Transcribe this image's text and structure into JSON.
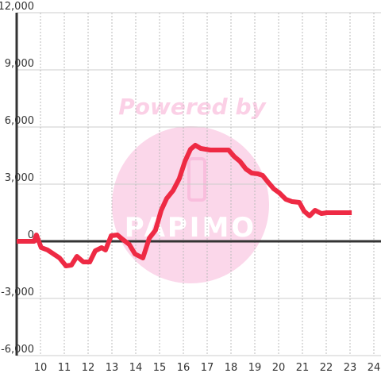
{
  "chart_data": {
    "type": "line",
    "watermark": "Powered by",
    "logo": "PAPIMO",
    "x": [
      9,
      9.73,
      9.83,
      10.03,
      10.3,
      10.8,
      11.07,
      11.3,
      11.53,
      11.8,
      12.07,
      12.3,
      12.57,
      12.73,
      12.97,
      13.23,
      13.47,
      13.73,
      13.97,
      14.3,
      14.57,
      14.83,
      15.07,
      15.3,
      15.57,
      15.83,
      16.07,
      16.3,
      16.5,
      16.73,
      17.13,
      17.9,
      18.13,
      18.37,
      18.63,
      18.87,
      19.13,
      19.33,
      19.57,
      19.8,
      20.03,
      20.3,
      20.57,
      20.87,
      21.07,
      21.3,
      21.53,
      21.8,
      22.03,
      23.07
    ],
    "series": [
      {
        "color": "#ee2a44",
        "values": [
          0,
          0,
          333,
          -333,
          -458,
          -875,
          -1292,
          -1250,
          -792,
          -1083,
          -1083,
          -500,
          -333,
          -458,
          292,
          333,
          83,
          -167,
          -667,
          -875,
          167,
          583,
          1625,
          2250,
          2667,
          3292,
          4208,
          4833,
          5042,
          4875,
          4792,
          4792,
          4458,
          4208,
          3792,
          3583,
          3542,
          3458,
          3083,
          2750,
          2542,
          2208,
          2083,
          2042,
          1583,
          1333,
          1625,
          1458,
          1500,
          1500
        ]
      }
    ],
    "xlim": [
      9,
      24.3
    ],
    "xticks": [
      10,
      11,
      12,
      13,
      14,
      15,
      16,
      17,
      18,
      19,
      20,
      21,
      22,
      23,
      24
    ],
    "ylim": [
      -6000,
      12000
    ],
    "yticks": [
      {
        "value": -6000,
        "label": "-6,000"
      },
      {
        "value": -3000,
        "label": "-3,000"
      },
      0,
      {
        "value": 3000,
        "label": "3,000"
      },
      {
        "value": 6000,
        "label": "6,000"
      },
      {
        "value": 9000,
        "label": "9,000"
      },
      {
        "value": 12000,
        "label": "12,000"
      }
    ],
    "grid": true
  }
}
